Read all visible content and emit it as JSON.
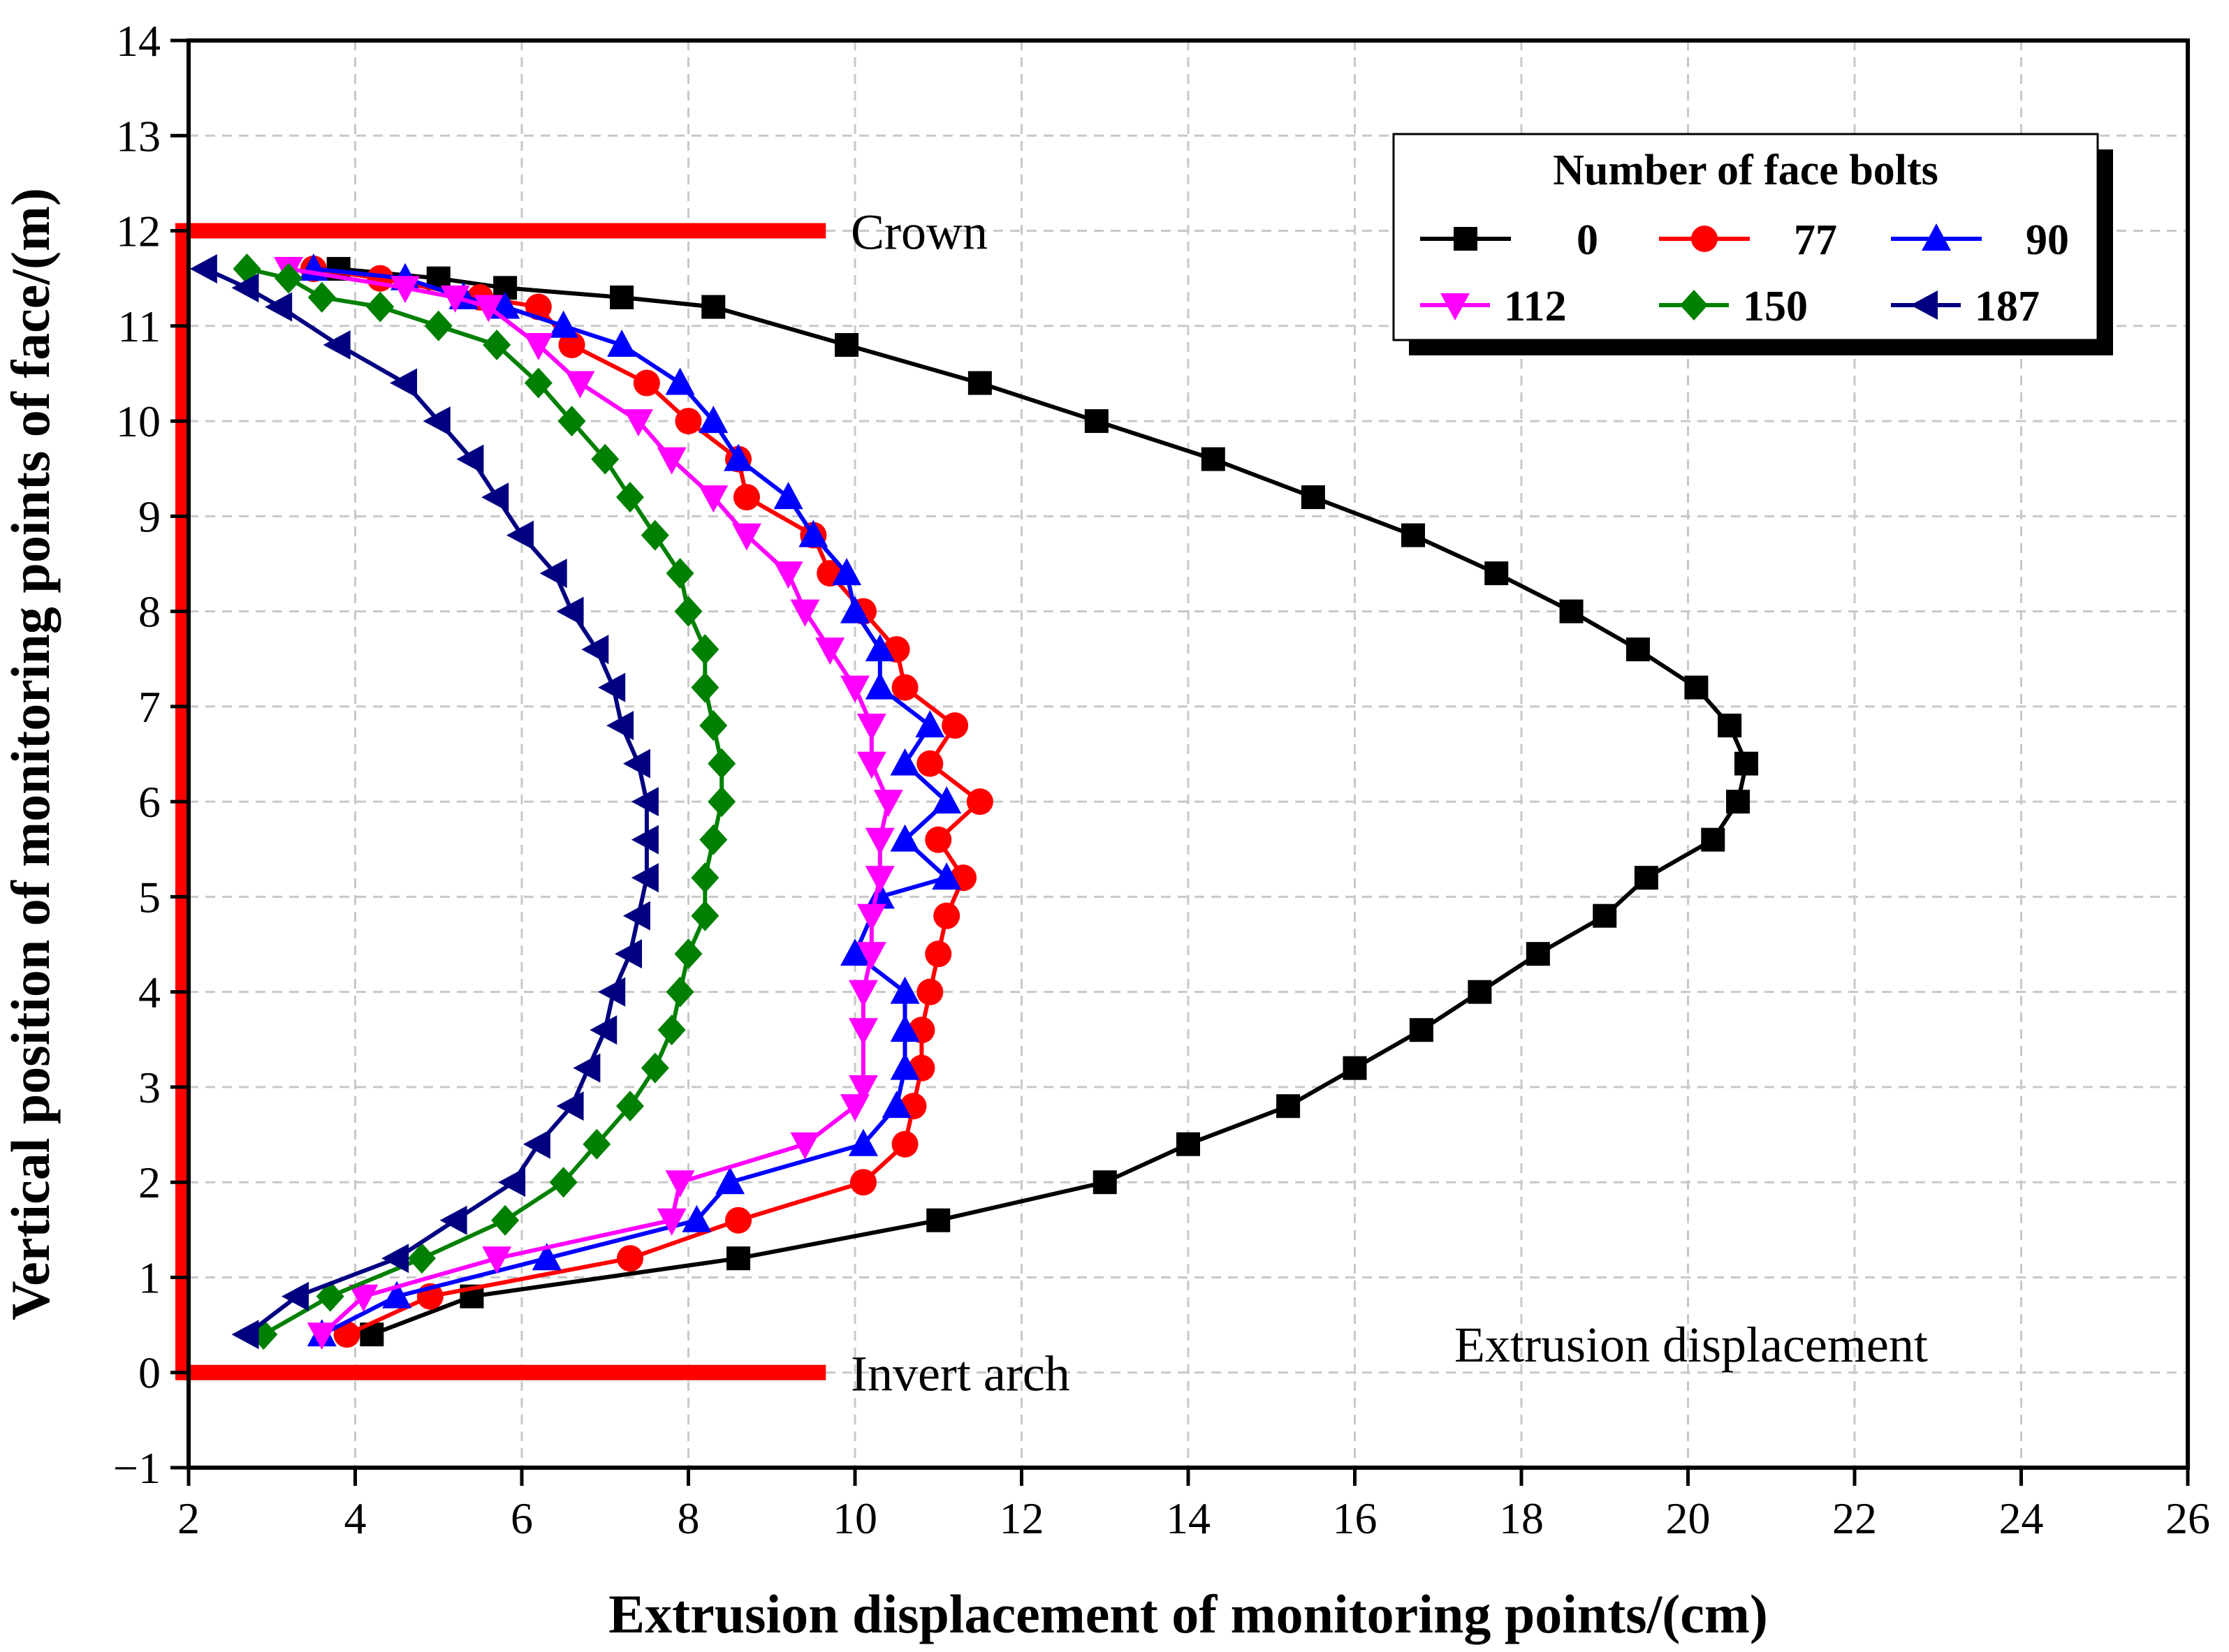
{
  "chart_data": {
    "type": "line",
    "xlabel": "Extrusion displacement of monitoring points/(cm)",
    "ylabel": "Vertical position of monitoring points of face/(m)",
    "xlim": [
      2,
      26
    ],
    "ylim": [
      -1,
      14
    ],
    "xticks": [
      2,
      4,
      6,
      8,
      10,
      12,
      14,
      16,
      18,
      20,
      22,
      24,
      26
    ],
    "yticks": [
      "−1",
      "0",
      "1",
      "2",
      "3",
      "4",
      "5",
      "6",
      "7",
      "8",
      "9",
      "10",
      "11",
      "12",
      "13",
      "14"
    ],
    "grid": true,
    "legend": {
      "title": "Number of face bolts",
      "position": "top-right"
    },
    "annotations": {
      "crown": "Crown",
      "invert": "Invert arch",
      "extrusion": "Extrusion displacement"
    },
    "face_outline_color": "#ff0000",
    "series": [
      {
        "name": "0",
        "color": "#000000",
        "marker": "square",
        "x": [
          4.2,
          5.4,
          8.6,
          11.0,
          13.0,
          14.0,
          15.2,
          16.0,
          16.8,
          17.5,
          18.2,
          19.0,
          19.5,
          20.3,
          20.6,
          20.7,
          20.5,
          20.1,
          19.4,
          18.6,
          17.7,
          16.7,
          15.5,
          14.3,
          12.9,
          11.5,
          9.9,
          8.3,
          7.2,
          5.8,
          5.0,
          3.8
        ],
        "y": [
          0.4,
          0.8,
          1.2,
          1.6,
          2.0,
          2.4,
          2.8,
          3.2,
          3.6,
          4.0,
          4.4,
          4.8,
          5.2,
          5.6,
          6.0,
          6.4,
          6.8,
          7.2,
          7.6,
          8.0,
          8.4,
          8.8,
          9.2,
          9.6,
          10.0,
          10.4,
          10.8,
          11.2,
          11.3,
          11.4,
          11.5,
          11.6
        ]
      },
      {
        "name": "77",
        "color": "#ff0000",
        "marker": "circle",
        "x": [
          3.9,
          4.9,
          7.3,
          8.6,
          10.1,
          10.6,
          10.7,
          10.8,
          10.8,
          10.9,
          11.0,
          11.1,
          11.3,
          11.0,
          11.5,
          10.9,
          11.2,
          10.6,
          10.5,
          10.1,
          9.7,
          9.5,
          8.7,
          8.6,
          8.0,
          7.5,
          6.6,
          6.2,
          5.5,
          4.3,
          3.5
        ],
        "y": [
          0.4,
          0.8,
          1.2,
          1.6,
          2.0,
          2.4,
          2.8,
          3.2,
          3.6,
          4.0,
          4.4,
          4.8,
          5.2,
          5.6,
          6.0,
          6.4,
          6.8,
          7.2,
          7.6,
          8.0,
          8.4,
          8.8,
          9.2,
          9.6,
          10.0,
          10.4,
          10.8,
          11.2,
          11.3,
          11.5,
          11.6
        ]
      },
      {
        "name": "90",
        "color": "#0000ff",
        "marker": "triangle-up",
        "x": [
          3.6,
          4.5,
          6.3,
          8.1,
          8.5,
          10.1,
          10.5,
          10.6,
          10.6,
          10.6,
          10.0,
          10.3,
          11.1,
          10.6,
          11.1,
          10.6,
          10.9,
          10.3,
          10.3,
          10.0,
          9.9,
          9.5,
          9.2,
          8.6,
          8.3,
          7.9,
          7.2,
          6.5,
          5.8,
          5.3,
          4.6,
          3.5
        ],
        "y": [
          0.4,
          0.8,
          1.2,
          1.6,
          2.0,
          2.4,
          2.8,
          3.2,
          3.6,
          4.0,
          4.4,
          5.0,
          5.2,
          5.6,
          6.0,
          6.4,
          6.8,
          7.2,
          7.6,
          8.0,
          8.4,
          8.8,
          9.2,
          9.6,
          10.0,
          10.4,
          10.8,
          11.0,
          11.2,
          11.3,
          11.5,
          11.6
        ]
      },
      {
        "name": "112",
        "color": "#ff00ff",
        "marker": "triangle-down",
        "x": [
          3.6,
          4.1,
          5.7,
          7.8,
          7.9,
          9.4,
          10.0,
          10.1,
          10.1,
          10.1,
          10.2,
          10.2,
          10.3,
          10.3,
          10.4,
          10.2,
          10.2,
          10.0,
          9.7,
          9.4,
          9.2,
          8.7,
          8.3,
          7.8,
          7.4,
          6.7,
          6.2,
          5.6,
          5.2,
          4.6,
          3.2
        ],
        "y": [
          0.4,
          0.8,
          1.2,
          1.6,
          2.0,
          2.4,
          2.8,
          3.0,
          3.6,
          4.0,
          4.4,
          4.8,
          5.2,
          5.6,
          6.0,
          6.4,
          6.8,
          7.2,
          7.6,
          8.0,
          8.4,
          8.8,
          9.2,
          9.6,
          10.0,
          10.4,
          10.8,
          11.2,
          11.3,
          11.4,
          11.6
        ]
      },
      {
        "name": "150",
        "color": "#008000",
        "marker": "diamond",
        "x": [
          2.9,
          3.7,
          4.8,
          5.8,
          6.5,
          6.9,
          7.3,
          7.6,
          7.8,
          7.9,
          8.0,
          8.2,
          8.2,
          8.3,
          8.4,
          8.4,
          8.3,
          8.2,
          8.2,
          8.0,
          7.9,
          7.6,
          7.3,
          7.0,
          6.6,
          6.2,
          5.7,
          5.0,
          4.3,
          3.6,
          3.2,
          2.7
        ],
        "y": [
          0.4,
          0.8,
          1.2,
          1.6,
          2.0,
          2.4,
          2.8,
          3.2,
          3.6,
          4.0,
          4.4,
          4.8,
          5.2,
          5.6,
          6.0,
          6.4,
          6.8,
          7.2,
          7.6,
          8.0,
          8.4,
          8.8,
          9.2,
          9.6,
          10.0,
          10.4,
          10.8,
          11.0,
          11.2,
          11.3,
          11.5,
          11.6
        ]
      },
      {
        "name": "187",
        "color": "#000080",
        "marker": "triangle-left",
        "x": [
          2.7,
          3.3,
          4.5,
          5.2,
          5.9,
          6.2,
          6.6,
          6.8,
          7.0,
          7.1,
          7.3,
          7.4,
          7.5,
          7.5,
          7.5,
          7.4,
          7.2,
          7.1,
          6.9,
          6.6,
          6.4,
          6.0,
          5.7,
          5.4,
          5.0,
          4.6,
          3.8,
          3.1,
          2.7,
          2.2
        ],
        "y": [
          0.4,
          0.8,
          1.2,
          1.6,
          2.0,
          2.4,
          2.8,
          3.2,
          3.6,
          4.0,
          4.4,
          4.8,
          5.2,
          5.6,
          6.0,
          6.4,
          6.8,
          7.2,
          7.6,
          8.0,
          8.4,
          8.8,
          9.2,
          9.6,
          10.0,
          10.4,
          10.8,
          11.2,
          11.4,
          11.6
        ]
      }
    ]
  }
}
